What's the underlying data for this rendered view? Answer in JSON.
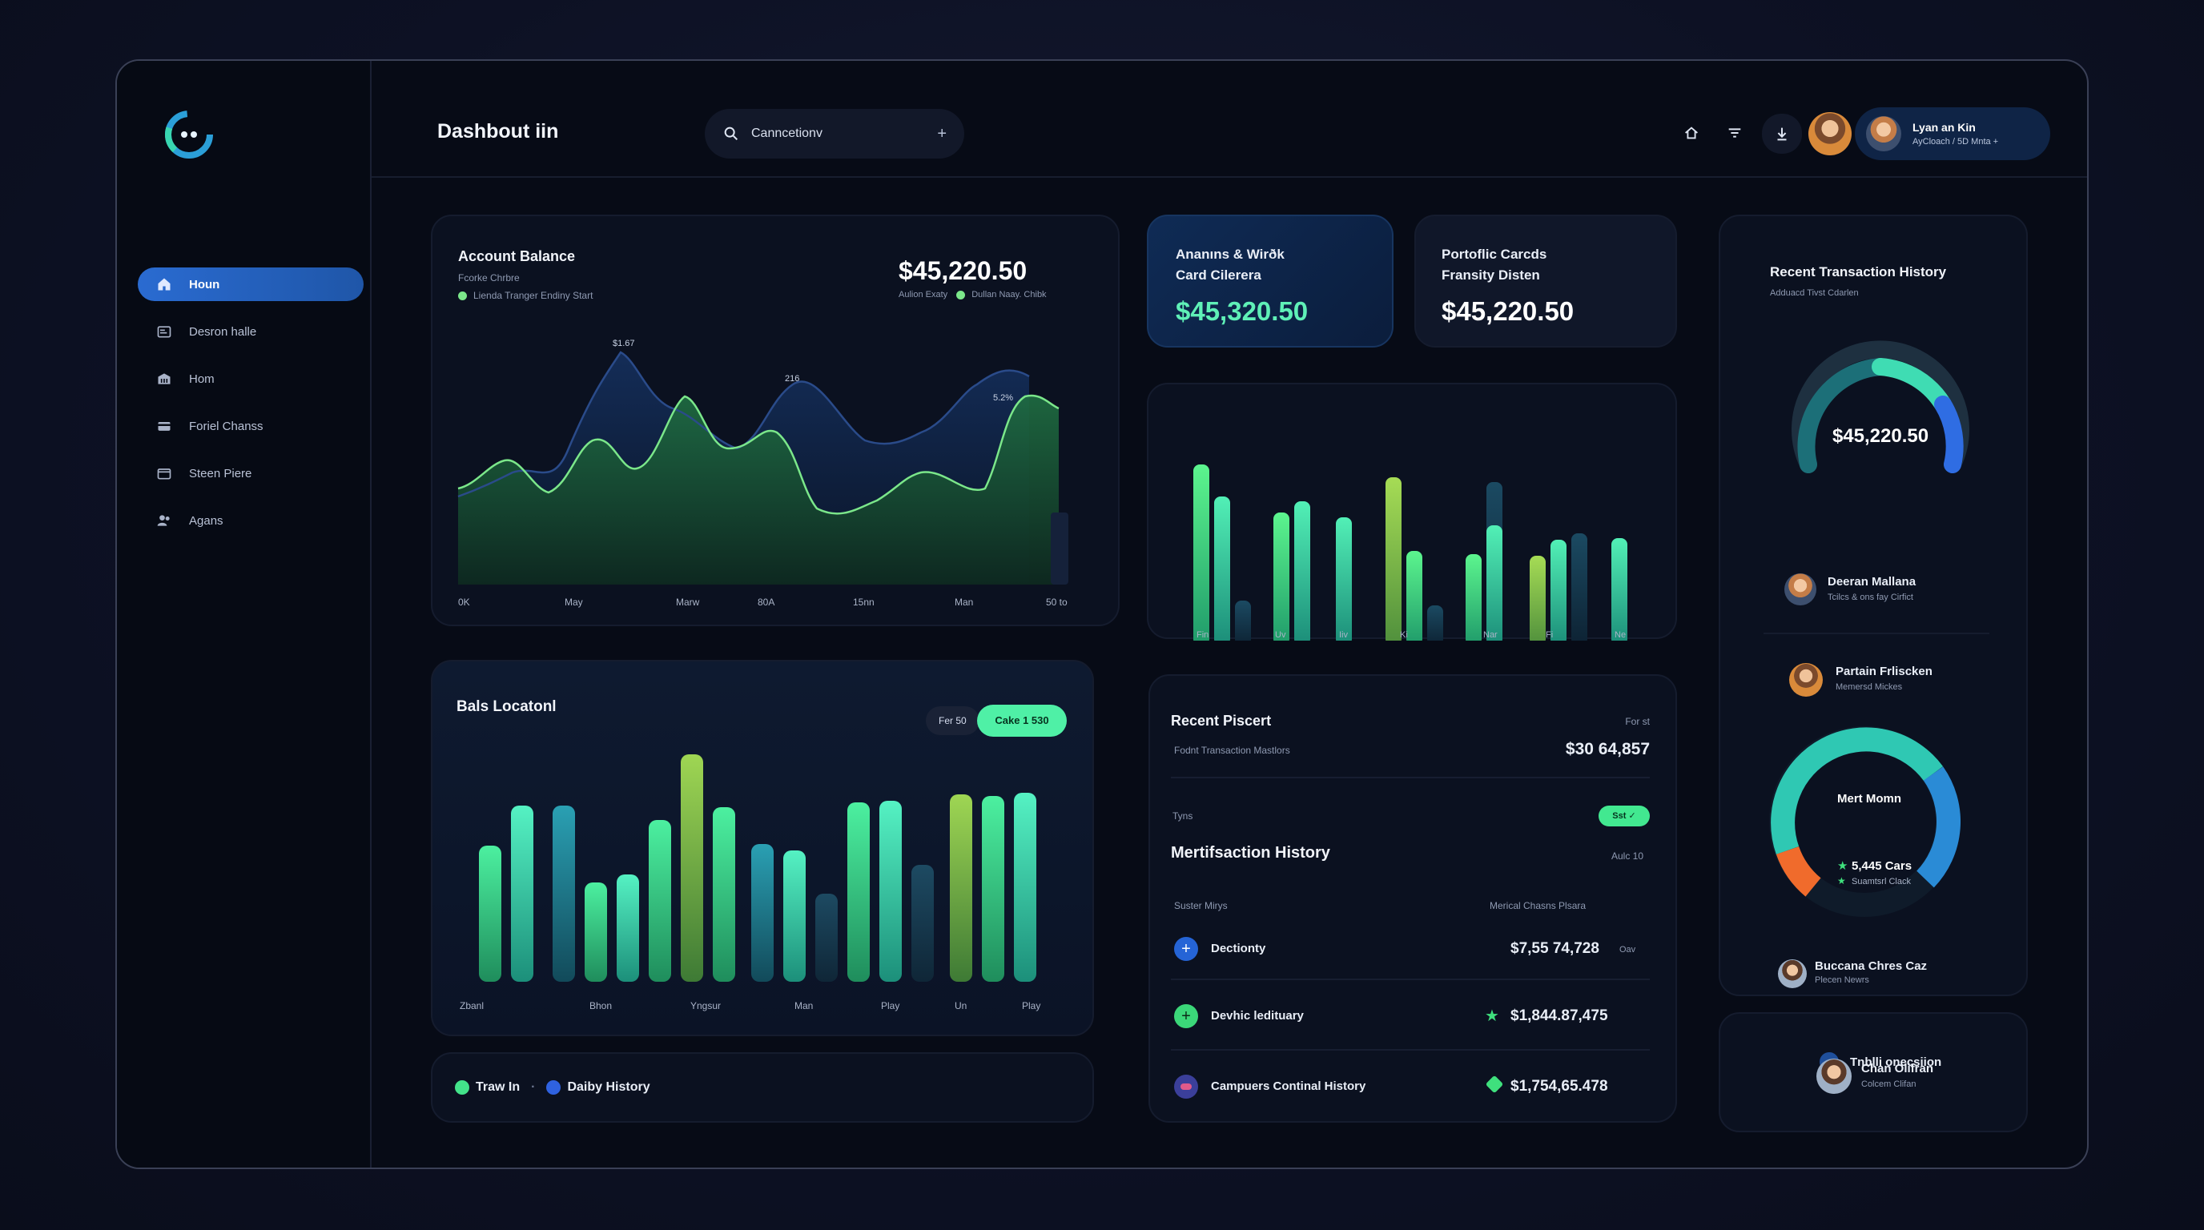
{
  "app": {
    "title": "Dashbout iin"
  },
  "search": {
    "value": "Canncetionv",
    "add_label": "+"
  },
  "sidebar": {
    "items": [
      {
        "label": "Houn",
        "icon": "home-icon",
        "active": true
      },
      {
        "label": "Desron halle",
        "icon": "wallet-icon"
      },
      {
        "label": "Hom",
        "icon": "bank-icon"
      },
      {
        "label": "Foriel Chanss",
        "icon": "card-icon"
      },
      {
        "label": "Steen Piere",
        "icon": "folder-icon"
      },
      {
        "label": "Agans",
        "icon": "users-icon"
      }
    ]
  },
  "topbar": {
    "icons": [
      "home-icon",
      "filter-icon",
      "download-icon"
    ],
    "user": {
      "name": "Lyan an Kin",
      "sub": "AyCloach / 5D Mnta +"
    }
  },
  "balance_card": {
    "title": "Account Balance",
    "subtitle": "Fcorke Chrbre",
    "legend_left": "Lienda Tranger Endiny Start",
    "value": "$45,220.50",
    "legend_right_a": "Aulion Exaty",
    "legend_right_b": "Dullan Naay. Chibk",
    "peak_labels": [
      "$1.67",
      "216",
      "5.2%"
    ],
    "x_labels": [
      "0K",
      "May",
      "Marw",
      "80A",
      "15nn",
      "Man",
      "50 to"
    ],
    "colors": {
      "area": "#1c5a3a",
      "line_a": "#7be78a",
      "line_b": "#2a4b8a"
    }
  },
  "stat_cards": [
    {
      "line1": "Ananıns & Wirðk",
      "line2": "Card Cilerera",
      "value": "$45,320.50"
    },
    {
      "line1": "Portoflic Carcds",
      "line2": "Fransity Disten",
      "value": "$45,220.50"
    }
  ],
  "mini_bars": {
    "x_labels": [
      "Fin",
      "Uv",
      "Iiv",
      "Ki",
      "Nar",
      "Fi",
      "Ne"
    ]
  },
  "bals_card": {
    "title": "Bals Locatonl",
    "chip_a": "Fer 50",
    "chip_b": "Cake 1 530",
    "x_labels": [
      "Zbanl",
      "Bhon",
      "Yngsur",
      "Man",
      "Play",
      "Un",
      "Play"
    ]
  },
  "legend_bar": {
    "item_a": "Traw In",
    "item_b": "Daiby History",
    "sep": "·"
  },
  "recent_card": {
    "title": "Recent Piscert",
    "right_label": "For st",
    "subtitle": "Fodnt Transaction Mastlors",
    "value": "$30 64,857",
    "type_label": "Tyns",
    "badge": "Sst",
    "section_title": "Mertifsaction History",
    "section_right": "Aulc 10",
    "col_left": "Suster Mirys",
    "col_right": "Merical Chasns Plsara",
    "rows": [
      {
        "name": "Dectionty",
        "amount": "$7,55 74,728",
        "suffix": "Oav",
        "icon": "plus-icon"
      },
      {
        "name": "Devhic ledituary",
        "amount": "$1,844.87,475",
        "suffix": "",
        "icon": "plus-icon"
      },
      {
        "name": "Campuers Continal History",
        "amount": "$1,754,65.478",
        "suffix": "",
        "icon": "record-icon"
      }
    ]
  },
  "history_card": {
    "title": "Recent Transaction History",
    "subtitle": "Adduacd Tivst Cdarlen",
    "gauge_value": "$45,220.50",
    "person1": {
      "name": "Deeran Mallana",
      "sub": "Tcilcs & ons fay Cirfict"
    },
    "person2": {
      "name": "Partain Frliscken",
      "sub": "Memersd Mickes"
    },
    "donut_title": "Mert Momn",
    "donut_value": "5,445 Cars",
    "donut_sub": "Suamtsrl Clack",
    "person3": {
      "name": "Buccana Chres Caz",
      "sub": "Plecen Newrs"
    }
  },
  "bottom_right": {
    "item1": "Tnblli onecsiion",
    "person": {
      "name": "Chan Olifran",
      "sub": "Colcem Clifan"
    }
  }
}
